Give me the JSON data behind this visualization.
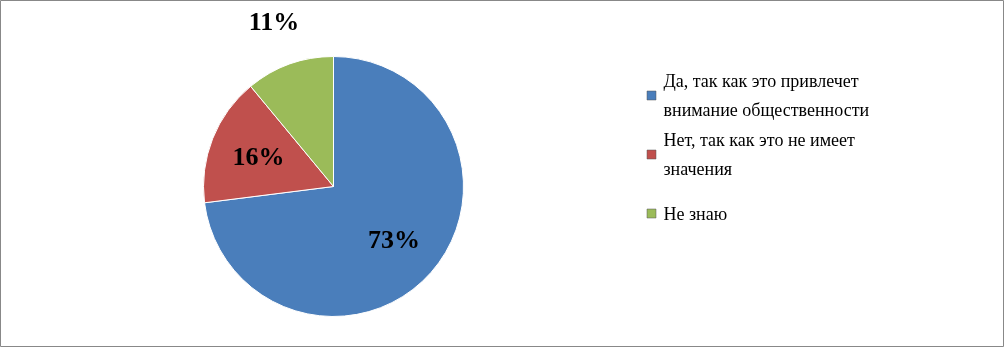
{
  "chart_data": {
    "type": "pie",
    "categories": [
      "Да, так как это привлечет внимание общественности",
      "Нет, так как это не имеет значения",
      "Не знаю"
    ],
    "values": [
      73,
      16,
      11
    ],
    "colors": [
      "#4a7ebb",
      "#c0504d",
      "#9bbb59"
    ],
    "value_labels": [
      "73%",
      "16%",
      "11%"
    ],
    "legend": "right"
  }
}
